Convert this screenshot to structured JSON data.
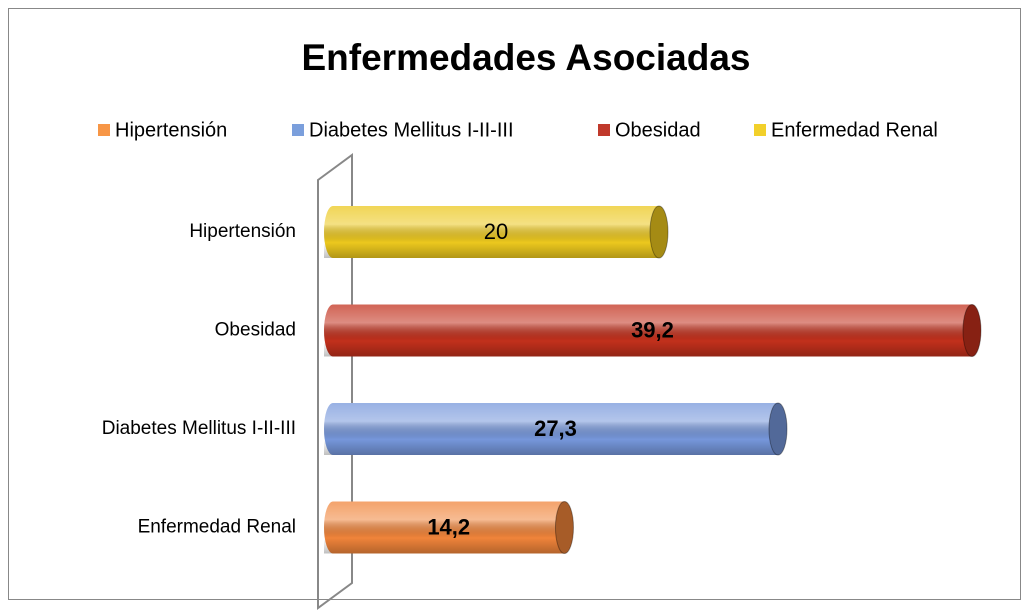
{
  "chart_data": {
    "type": "bar",
    "orientation": "horizontal",
    "title": "Enfermedades Asociadas",
    "legend": [
      {
        "name": "Hipertensión",
        "color": "#f79646"
      },
      {
        "name": "Diabetes Mellitus I-II-III",
        "color": "#7b9fdc"
      },
      {
        "name": "Obesidad",
        "color": "#c0392b"
      },
      {
        "name": "Enfermedad Renal",
        "color": "#f2d02a"
      }
    ],
    "categories": [
      "Hipertensión",
      "Obesidad",
      "Diabetes Mellitus I-II-III",
      "Enfermedad Renal"
    ],
    "values": [
      20,
      39.2,
      27.3,
      14.2
    ],
    "value_labels": [
      "20",
      "39,2",
      "27,3",
      "14,2"
    ],
    "colors": [
      "#ecc81e",
      "#c2301c",
      "#7697db",
      "#f0843a"
    ]
  }
}
